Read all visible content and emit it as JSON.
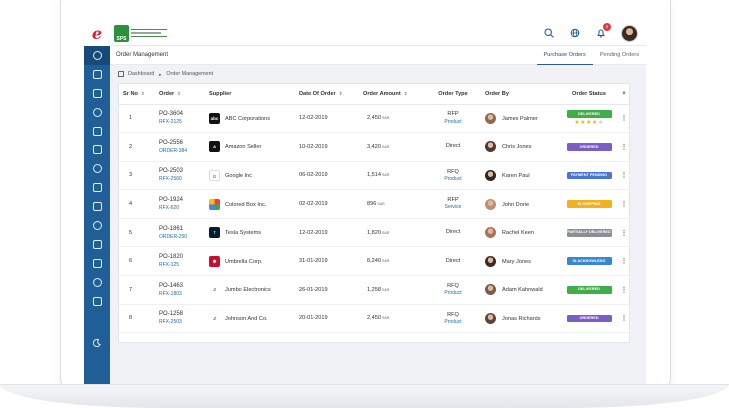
{
  "brand": {
    "logo_letter": "e",
    "company_mark": "SPS"
  },
  "topbar": {
    "icons": [
      "search-icon",
      "globe-icon",
      "bell-icon",
      "avatar"
    ],
    "notification_count": "5"
  },
  "sidebar": {
    "icons": [
      "info-icon",
      "image-icon",
      "list-icon",
      "document-icon",
      "handshake-icon",
      "box-icon",
      "calculator-icon",
      "flask-icon",
      "cart-icon",
      "package-icon",
      "check-icon",
      "file-icon",
      "download-icon",
      "settings-icon"
    ],
    "bottom_icon": "moon-icon"
  },
  "subbar": {
    "title": "Order Management",
    "tabs": [
      {
        "label": "Purchase Orders",
        "active": true
      },
      {
        "label": "Pending Orders",
        "active": false
      }
    ]
  },
  "breadcrumb": {
    "items": [
      "Dashboard",
      "Order Management"
    ],
    "separator": "►"
  },
  "table": {
    "columns": [
      "Sr No",
      "Order",
      "Supplier",
      "Date Of Order",
      "Order Amount",
      "Order Type",
      "Order By",
      "Order Status"
    ],
    "currency": "SAR",
    "rows": [
      {
        "sr": "1",
        "po": "PO-3604",
        "ref": "RFX-2125",
        "supplier": "ABC Corporations",
        "supplier_logo": "abc",
        "date": "12-02-2019",
        "amount": "2,450",
        "type": "RFP",
        "type_sub": "Product",
        "by": "James Palmer",
        "status": "DELIVERED",
        "status_color": "#3fae49",
        "rating": 4
      },
      {
        "sr": "2",
        "po": "PO-2556",
        "ref": "ORDER-384",
        "supplier": "Amazon Seller",
        "supplier_logo": "a",
        "date": "10-02-2019",
        "amount": "3,420",
        "type": "Direct",
        "type_sub": "",
        "by": "Chris Jones",
        "status": "ORDERED",
        "status_color": "#7a5ec7"
      },
      {
        "sr": "3",
        "po": "PO-2503",
        "ref": "RFX-2560",
        "supplier": "Google Inc",
        "supplier_logo": "G",
        "date": "06-02-2019",
        "amount": "1,514",
        "type": "RFQ",
        "type_sub": "Product",
        "by": "Karen Paul",
        "status": "PAYMENT PENDING",
        "status_color": "#4a74d8"
      },
      {
        "sr": "4",
        "po": "PO-1924",
        "ref": "RFX-620",
        "supplier": "Colored Box Inc.",
        "supplier_logo": "box",
        "date": "02-02-2019",
        "amount": "896",
        "type": "RFP",
        "type_sub": "Service",
        "by": "John Dorie",
        "status": "IN SHIPPING",
        "status_color": "#f2b21b"
      },
      {
        "sr": "5",
        "po": "PO-1861",
        "ref": "ORDER-250",
        "supplier": "Tesla Systems",
        "supplier_logo": "tesla",
        "date": "12-02-2019",
        "amount": "1,820",
        "type": "Direct",
        "type_sub": "",
        "by": "Rachel Keen",
        "status": "PARTIALLY DELIVERED",
        "status_color": "#8a8f96"
      },
      {
        "sr": "6",
        "po": "PO-1820",
        "ref": "RFX-125",
        "supplier": "Umbrella Corp.",
        "supplier_logo": "umbrella",
        "date": "31-01-2019",
        "amount": "8,240",
        "type": "Direct",
        "type_sub": "",
        "by": "Mary Jones",
        "status": "IN ACKNOWLEDG",
        "status_color": "#3a86d1"
      },
      {
        "sr": "7",
        "po": "PO-1463",
        "ref": "RFX-1803",
        "supplier": "Jumbo Electronics",
        "supplier_logo": "jumbo",
        "date": "26-01-2019",
        "amount": "1,258",
        "type": "RFQ",
        "type_sub": "Product",
        "by": "Adam Kahnwald",
        "status": "DELIVERED",
        "status_color": "#3fae49"
      },
      {
        "sr": "8",
        "po": "PO-1258",
        "ref": "RFX-2503",
        "supplier": "Johnson And Co.",
        "supplier_logo": "johnson",
        "date": "20-01-2019",
        "amount": "2,450",
        "type": "RFQ",
        "type_sub": "Product",
        "by": "Jonas Richards",
        "status": "ORDERED",
        "status_color": "#7a5ec7"
      }
    ]
  }
}
